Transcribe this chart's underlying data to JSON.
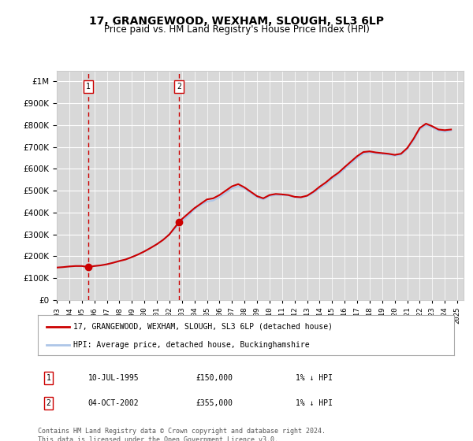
{
  "title": "17, GRANGEWOOD, WEXHAM, SLOUGH, SL3 6LP",
  "subtitle": "Price paid vs. HM Land Registry's House Price Index (HPI)",
  "legend_line1": "17, GRANGEWOOD, WEXHAM, SLOUGH, SL3 6LP (detached house)",
  "legend_line2": "HPI: Average price, detached house, Buckinghamshire",
  "annotation1_label": "1",
  "annotation1_date": "10-JUL-1995",
  "annotation1_price": "£150,000",
  "annotation1_hpi": "1% ↓ HPI",
  "annotation2_label": "2",
  "annotation2_date": "04-OCT-2002",
  "annotation2_price": "£355,000",
  "annotation2_hpi": "1% ↓ HPI",
  "footer": "Contains HM Land Registry data © Crown copyright and database right 2024.\nThis data is licensed under the Open Government Licence v3.0.",
  "background_color": "#ffffff",
  "plot_bg_color": "#f0f0f0",
  "hatch_color": "#d8d8d8",
  "grid_color": "#ffffff",
  "hpi_line_color": "#aec6e8",
  "price_line_color": "#cc0000",
  "dot_color": "#cc0000",
  "vline_color": "#cc0000",
  "ylim": [
    0,
    1050000
  ],
  "yticks": [
    0,
    100000,
    200000,
    300000,
    400000,
    500000,
    600000,
    700000,
    800000,
    900000,
    1000000
  ],
  "xlim_start": 1993.0,
  "xlim_end": 2025.5,
  "sale1_x": 1995.53,
  "sale1_y": 150000,
  "sale2_x": 2002.75,
  "sale2_y": 355000,
  "hpi_years": [
    1993.0,
    1993.5,
    1994.0,
    1994.5,
    1995.0,
    1995.5,
    1996.0,
    1996.5,
    1997.0,
    1997.5,
    1998.0,
    1998.5,
    1999.0,
    1999.5,
    2000.0,
    2000.5,
    2001.0,
    2001.5,
    2002.0,
    2002.5,
    2003.0,
    2003.5,
    2004.0,
    2004.5,
    2005.0,
    2005.5,
    2006.0,
    2006.5,
    2007.0,
    2007.5,
    2008.0,
    2008.5,
    2009.0,
    2009.5,
    2010.0,
    2010.5,
    2011.0,
    2011.5,
    2012.0,
    2012.5,
    2013.0,
    2013.5,
    2014.0,
    2014.5,
    2015.0,
    2015.5,
    2016.0,
    2016.5,
    2017.0,
    2017.5,
    2018.0,
    2018.5,
    2019.0,
    2019.5,
    2020.0,
    2020.5,
    2021.0,
    2021.5,
    2022.0,
    2022.5,
    2023.0,
    2023.5,
    2024.0,
    2024.5
  ],
  "hpi_values": [
    148000,
    150000,
    153000,
    155000,
    155000,
    152000,
    155000,
    158000,
    163000,
    170000,
    178000,
    185000,
    196000,
    208000,
    222000,
    238000,
    255000,
    275000,
    300000,
    330000,
    360000,
    385000,
    415000,
    435000,
    450000,
    455000,
    470000,
    490000,
    510000,
    520000,
    510000,
    490000,
    470000,
    460000,
    475000,
    480000,
    480000,
    478000,
    470000,
    468000,
    475000,
    490000,
    510000,
    530000,
    555000,
    575000,
    600000,
    625000,
    650000,
    670000,
    675000,
    670000,
    668000,
    665000,
    660000,
    665000,
    690000,
    730000,
    780000,
    800000,
    790000,
    775000,
    770000,
    775000
  ],
  "price_years": [
    1993.0,
    1993.5,
    1994.0,
    1994.5,
    1995.0,
    1995.53,
    1996.0,
    1996.5,
    1997.0,
    1997.5,
    1998.0,
    1998.5,
    1999.0,
    1999.5,
    2000.0,
    2000.5,
    2001.0,
    2001.5,
    2002.0,
    2002.75,
    2003.0,
    2003.5,
    2004.0,
    2004.5,
    2005.0,
    2005.5,
    2006.0,
    2006.5,
    2007.0,
    2007.5,
    2008.0,
    2008.5,
    2009.0,
    2009.5,
    2010.0,
    2010.5,
    2011.0,
    2011.5,
    2012.0,
    2012.5,
    2013.0,
    2013.5,
    2014.0,
    2014.5,
    2015.0,
    2015.5,
    2016.0,
    2016.5,
    2017.0,
    2017.5,
    2018.0,
    2018.5,
    2019.0,
    2019.5,
    2020.0,
    2020.5,
    2021.0,
    2021.5,
    2022.0,
    2022.5,
    2023.0,
    2023.5,
    2024.0,
    2024.5
  ],
  "price_values": [
    148000,
    150000,
    153000,
    155000,
    155000,
    150000,
    155000,
    158000,
    163000,
    170000,
    178000,
    185000,
    196000,
    208000,
    222000,
    238000,
    255000,
    275000,
    300000,
    355000,
    370000,
    395000,
    420000,
    440000,
    460000,
    465000,
    480000,
    500000,
    520000,
    530000,
    515000,
    495000,
    475000,
    465000,
    480000,
    485000,
    483000,
    480000,
    472000,
    470000,
    477000,
    495000,
    518000,
    538000,
    562000,
    582000,
    608000,
    633000,
    658000,
    677000,
    680000,
    675000,
    672000,
    669000,
    664000,
    669000,
    695000,
    737000,
    787000,
    807000,
    795000,
    780000,
    777000,
    780000
  ]
}
